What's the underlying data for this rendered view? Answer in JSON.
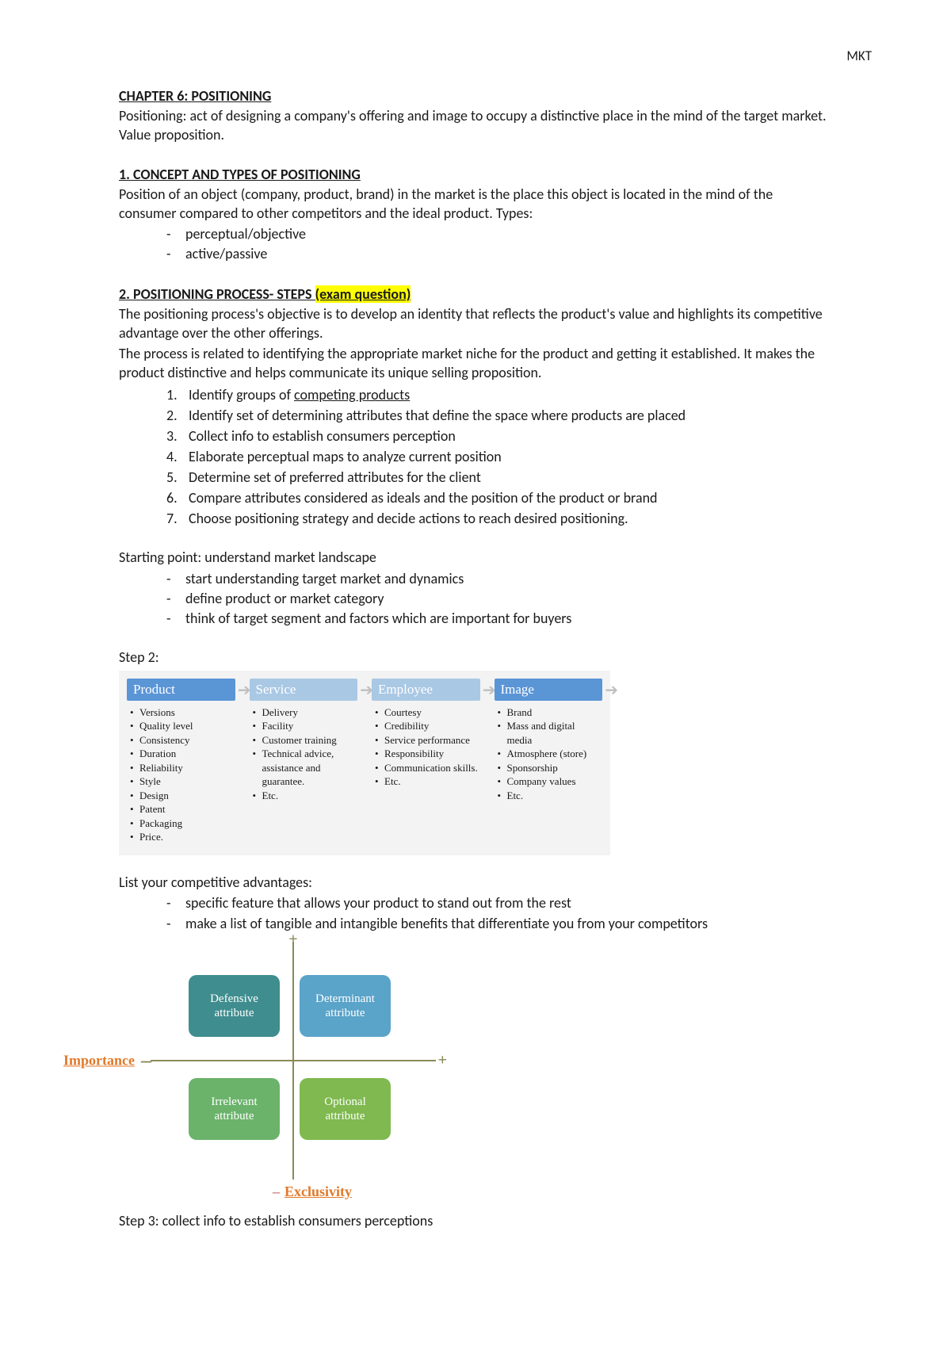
{
  "header": {
    "corner": "MKT"
  },
  "chapter": {
    "title": "CHAPTER 6: POSITIONING",
    "intro": "Positioning: act of designing a company's offering and image to occupy a distinctive place in the mind of the target market. Value proposition."
  },
  "section1": {
    "heading": "1. CONCEPT AND TYPES OF POSITIONING",
    "body": "Position of an object (company, product, brand) in the market is the place this object is located in the mind of the consumer compared to other competitors and the ideal product. Types:",
    "types": [
      "perceptual/objective",
      "active/passive"
    ]
  },
  "section2": {
    "heading_prefix": "2. POSITIONING PROCESS- STEPS ",
    "heading_highlight": "(exam question)",
    "para1": "The positioning process's objective is to develop an identity that reflects the product's value and highlights its competitive advantage over the other offerings.",
    "para2": "The process is related to identifying the appropriate market niche for the product and getting it established. It makes the product distinctive and helps communicate its unique selling proposition.",
    "steps": [
      {
        "prefix": "Identify groups of ",
        "underline": "competing products",
        "suffix": ""
      },
      {
        "text": "Identify set of determining attributes that define the space where products are placed"
      },
      {
        "text": "Collect info to establish consumers perception"
      },
      {
        "text": "Elaborate perceptual maps to analyze current position"
      },
      {
        "text": "Determine set of preferred attributes for the client"
      },
      {
        "text": "Compare attributes considered as ideals and the position of the product or brand"
      },
      {
        "text": "Choose positioning strategy and decide actions to reach desired positioning."
      }
    ],
    "starting_point_label": "Starting point: understand market landscape",
    "starting_point_items": [
      "start understanding target market and dynamics",
      "define product or market category",
      "think of target segment and factors which are important for buyers"
    ],
    "step2_label": "Step 2:",
    "step2_diagram": {
      "background": "#f3f3f3",
      "columns": [
        {
          "title": "Product",
          "color": "#5a95d6",
          "items": [
            "Versions",
            "Quality level",
            "Consistency",
            "Duration",
            "Reliability",
            "Style",
            "Design",
            "Patent",
            "Packaging",
            "Price."
          ]
        },
        {
          "title": "Service",
          "color": "#a9c8e4",
          "items": [
            "Delivery",
            "Facility",
            "Customer training",
            "Technical advice, assistance and guarantee.",
            "Etc."
          ]
        },
        {
          "title": "Employee",
          "color": "#a9c8e4",
          "items": [
            "Courtesy",
            "Credibility",
            "Service performance",
            "Responsibility",
            "Communication skills.",
            "Etc."
          ]
        },
        {
          "title": "Image",
          "color": "#5a95d6",
          "items": [
            "Brand",
            "Mass and digital media",
            "Atmosphere (store)",
            "Sponsorship",
            "Company values",
            "Etc."
          ]
        }
      ],
      "arrow_color": "#bfbfbf"
    },
    "competitive_label": "List your competitive advantages:",
    "competitive_items": [
      "specific feature that allows your product to stand out from the rest",
      "make a list of tangible and intangible benefits that differentiate you from your competitors"
    ],
    "quadrant": {
      "axis_y_label": "Importance",
      "axis_x_label": "Exclusivity",
      "axis_label_color": "#e07a2c",
      "axis_line_color": "#8a8a57",
      "cells": {
        "top_left": {
          "label": "Defensive attribute",
          "color": "#3f8d8f"
        },
        "top_right": {
          "label": "Determinant attribute",
          "color": "#5aa3c9"
        },
        "bottom_left": {
          "label": "Irrelevant attribute",
          "color": "#6bb36b"
        },
        "bottom_right": {
          "label": "Optional attribute",
          "color": "#7fb94f"
        }
      }
    },
    "step3_label": "Step 3: collect info to establish consumers perceptions"
  }
}
